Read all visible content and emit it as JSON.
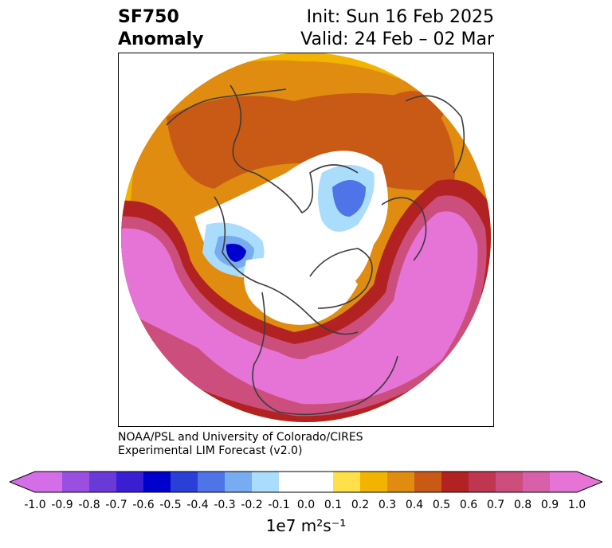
{
  "title": {
    "line1": "SF750",
    "line2": "Anomaly"
  },
  "forecast": {
    "init": "Init: Sun 16 Feb 2025",
    "valid": "Valid: 24 Feb – 02 Mar"
  },
  "credit": {
    "line1": "NOAA/PSL and University of Colorado/CIRES",
    "line2": "Experimental LIM Forecast (v2.0)"
  },
  "colorbar": {
    "unit": "1e7 m²s⁻¹",
    "ticks": [
      "-1.0",
      "-0.9",
      "-0.8",
      "-0.7",
      "-0.6",
      "-0.5",
      "-0.4",
      "-0.3",
      "-0.2",
      "-0.1",
      "0.0",
      "0.1",
      "0.2",
      "0.3",
      "0.4",
      "0.5",
      "0.6",
      "0.7",
      "0.8",
      "0.9",
      "1.0"
    ],
    "colors": [
      "#d36ee8",
      "#9b4fe0",
      "#6a3ad8",
      "#3a1ed2",
      "#0000cc",
      "#2a3ed8",
      "#4e74e8",
      "#78acf0",
      "#aadcfb",
      "#ffffff",
      "#ffffff",
      "#ffe04a",
      "#f2b400",
      "#e08c10",
      "#c85a16",
      "#b22222",
      "#c0354f",
      "#cc4e7c",
      "#d860a8",
      "#e574d6"
    ]
  },
  "map_colors": {
    "pos1": "#ffe04a",
    "pos2": "#f2b400",
    "pos3": "#e08c10",
    "pos4": "#c85a16",
    "pos5": "#b22222",
    "pos6": "#c0354f",
    "pos7": "#cc4e7c",
    "pos8": "#d860a8",
    "pos9": "#e574d6",
    "neg1": "#aadcfb",
    "neg2": "#78acf0",
    "neg3": "#4e74e8",
    "neg4": "#2a3ed8",
    "neg5": "#0000cc",
    "coast": "#3c3c3c"
  }
}
